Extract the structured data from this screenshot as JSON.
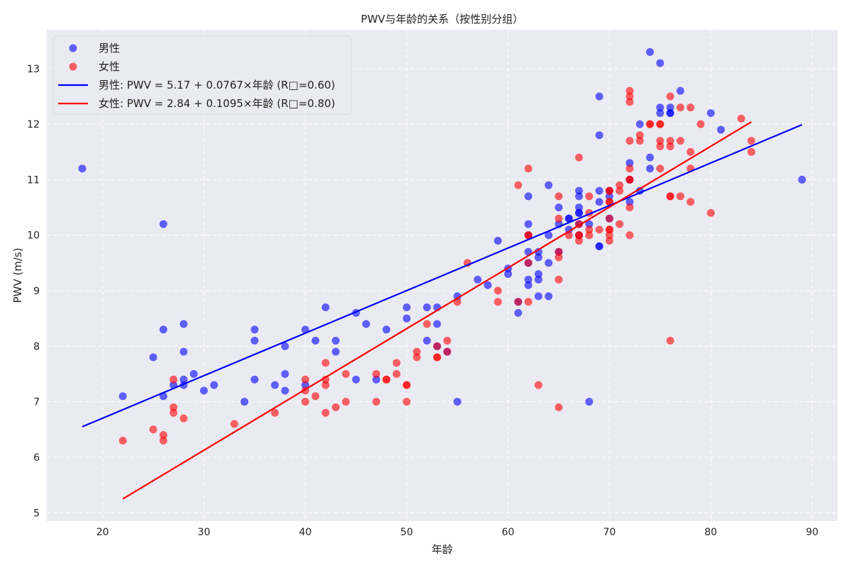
{
  "chart_data": {
    "type": "scatter",
    "title": "PWV与年龄的关系（按性别分组）",
    "xlabel": "年龄",
    "ylabel": "PWV (m/s)",
    "xlim": [
      14.5,
      92.5
    ],
    "ylim": [
      4.85,
      13.7
    ],
    "xticks": [
      20,
      30,
      40,
      50,
      60,
      70,
      80,
      90
    ],
    "yticks": [
      5,
      6,
      7,
      8,
      9,
      10,
      11,
      12,
      13
    ],
    "grid": true,
    "legend_position": "top-left",
    "series": [
      {
        "name": "男性",
        "kind": "scatter",
        "color": "#0000ff",
        "alpha": 0.6,
        "points": [
          [
            18,
            11.2
          ],
          [
            22,
            7.1
          ],
          [
            25,
            7.8
          ],
          [
            26,
            10.2
          ],
          [
            26,
            8.3
          ],
          [
            26,
            7.1
          ],
          [
            27,
            7.3
          ],
          [
            28,
            8.4
          ],
          [
            28,
            7.9
          ],
          [
            28,
            7.4
          ],
          [
            28,
            7.3
          ],
          [
            29,
            7.5
          ],
          [
            30,
            7.2
          ],
          [
            31,
            7.3
          ],
          [
            34,
            7.0
          ],
          [
            35,
            8.3
          ],
          [
            35,
            8.1
          ],
          [
            35,
            7.4
          ],
          [
            37,
            7.3
          ],
          [
            38,
            8.0
          ],
          [
            38,
            7.5
          ],
          [
            38,
            7.2
          ],
          [
            40,
            8.3
          ],
          [
            40,
            7.3
          ],
          [
            41,
            8.1
          ],
          [
            42,
            8.7
          ],
          [
            43,
            8.1
          ],
          [
            43,
            7.9
          ],
          [
            45,
            8.6
          ],
          [
            45,
            7.4
          ],
          [
            46,
            8.4
          ],
          [
            47,
            7.4
          ],
          [
            48,
            8.3
          ],
          [
            50,
            8.7
          ],
          [
            50,
            8.5
          ],
          [
            52,
            8.7
          ],
          [
            52,
            8.1
          ],
          [
            53,
            8.7
          ],
          [
            53,
            8.4
          ],
          [
            53,
            8.0
          ],
          [
            54,
            7.9
          ],
          [
            55,
            8.9
          ],
          [
            55,
            7.0
          ],
          [
            57,
            9.2
          ],
          [
            58,
            9.1
          ],
          [
            59,
            9.9
          ],
          [
            60,
            9.4
          ],
          [
            60,
            9.3
          ],
          [
            61,
            8.8
          ],
          [
            61,
            8.6
          ],
          [
            62,
            10.7
          ],
          [
            62,
            10.2
          ],
          [
            62,
            10.0
          ],
          [
            62,
            9.7
          ],
          [
            62,
            9.5
          ],
          [
            62,
            9.2
          ],
          [
            62,
            9.1
          ],
          [
            63,
            9.7
          ],
          [
            63,
            9.6
          ],
          [
            63,
            9.3
          ],
          [
            63,
            9.2
          ],
          [
            63,
            8.9
          ],
          [
            64,
            10.9
          ],
          [
            64,
            10.0
          ],
          [
            64,
            9.5
          ],
          [
            64,
            8.9
          ],
          [
            65,
            10.5
          ],
          [
            65,
            10.2
          ],
          [
            65,
            9.7
          ],
          [
            66,
            10.3
          ],
          [
            66,
            10.3
          ],
          [
            66,
            10.1
          ],
          [
            67,
            10.8
          ],
          [
            67,
            10.7
          ],
          [
            67,
            10.5
          ],
          [
            67,
            10.4
          ],
          [
            67,
            10.4
          ],
          [
            67,
            10.2
          ],
          [
            67,
            10.0
          ],
          [
            68,
            10.2
          ],
          [
            68,
            7.0
          ],
          [
            69,
            12.5
          ],
          [
            69,
            11.8
          ],
          [
            69,
            10.8
          ],
          [
            69,
            10.6
          ],
          [
            69,
            9.8
          ],
          [
            69,
            9.8
          ],
          [
            70,
            10.8
          ],
          [
            70,
            10.7
          ],
          [
            70,
            10.3
          ],
          [
            72,
            11.3
          ],
          [
            72,
            11.0
          ],
          [
            72,
            10.6
          ],
          [
            73,
            12.0
          ],
          [
            73,
            10.8
          ],
          [
            74,
            13.3
          ],
          [
            74,
            11.4
          ],
          [
            74,
            11.2
          ],
          [
            75,
            13.1
          ],
          [
            75,
            12.3
          ],
          [
            75,
            12.2
          ],
          [
            76,
            12.3
          ],
          [
            76,
            12.2
          ],
          [
            76,
            12.2
          ],
          [
            77,
            12.6
          ],
          [
            80,
            12.2
          ],
          [
            81,
            11.9
          ],
          [
            89,
            11.0
          ]
        ]
      },
      {
        "name": "女性",
        "kind": "scatter",
        "color": "#ff0000",
        "alpha": 0.6,
        "points": [
          [
            22,
            6.3
          ],
          [
            25,
            6.5
          ],
          [
            26,
            6.4
          ],
          [
            26,
            6.3
          ],
          [
            27,
            7.4
          ],
          [
            27,
            6.9
          ],
          [
            27,
            6.8
          ],
          [
            28,
            6.7
          ],
          [
            33,
            6.6
          ],
          [
            37,
            6.8
          ],
          [
            40,
            7.4
          ],
          [
            40,
            7.2
          ],
          [
            40,
            7.0
          ],
          [
            41,
            7.1
          ],
          [
            42,
            7.7
          ],
          [
            42,
            7.4
          ],
          [
            42,
            7.3
          ],
          [
            42,
            6.8
          ],
          [
            43,
            6.9
          ],
          [
            44,
            7.5
          ],
          [
            44,
            7.0
          ],
          [
            47,
            7.5
          ],
          [
            47,
            7.0
          ],
          [
            48,
            7.4
          ],
          [
            48,
            7.4
          ],
          [
            49,
            7.7
          ],
          [
            49,
            7.5
          ],
          [
            50,
            7.3
          ],
          [
            50,
            7.3
          ],
          [
            50,
            7.0
          ],
          [
            51,
            7.9
          ],
          [
            51,
            7.8
          ],
          [
            52,
            8.4
          ],
          [
            53,
            8.0
          ],
          [
            53,
            7.8
          ],
          [
            53,
            7.8
          ],
          [
            54,
            8.1
          ],
          [
            54,
            7.9
          ],
          [
            55,
            8.8
          ],
          [
            56,
            9.5
          ],
          [
            59,
            9.0
          ],
          [
            59,
            8.8
          ],
          [
            61,
            10.9
          ],
          [
            61,
            8.8
          ],
          [
            62,
            11.2
          ],
          [
            62,
            10.0
          ],
          [
            62,
            10.0
          ],
          [
            62,
            9.5
          ],
          [
            62,
            8.8
          ],
          [
            63,
            7.3
          ],
          [
            65,
            10.7
          ],
          [
            65,
            10.3
          ],
          [
            65,
            9.7
          ],
          [
            65,
            9.6
          ],
          [
            65,
            9.2
          ],
          [
            65,
            6.9
          ],
          [
            66,
            10.0
          ],
          [
            67,
            11.4
          ],
          [
            67,
            10.2
          ],
          [
            67,
            10.0
          ],
          [
            67,
            10.0
          ],
          [
            67,
            9.9
          ],
          [
            68,
            10.7
          ],
          [
            68,
            10.4
          ],
          [
            68,
            10.1
          ],
          [
            68,
            10.0
          ],
          [
            69,
            10.1
          ],
          [
            70,
            10.8
          ],
          [
            70,
            10.8
          ],
          [
            70,
            10.6
          ],
          [
            70,
            10.6
          ],
          [
            70,
            10.3
          ],
          [
            70,
            10.1
          ],
          [
            70,
            10.1
          ],
          [
            70,
            10.0
          ],
          [
            70,
            9.9
          ],
          [
            71,
            10.9
          ],
          [
            71,
            10.8
          ],
          [
            71,
            10.2
          ],
          [
            72,
            12.6
          ],
          [
            72,
            12.5
          ],
          [
            72,
            12.4
          ],
          [
            72,
            11.7
          ],
          [
            72,
            11.2
          ],
          [
            72,
            11.0
          ],
          [
            72,
            11.0
          ],
          [
            72,
            10.5
          ],
          [
            72,
            10.0
          ],
          [
            73,
            11.8
          ],
          [
            73,
            11.7
          ],
          [
            74,
            12.0
          ],
          [
            74,
            12.0
          ],
          [
            75,
            12.0
          ],
          [
            75,
            12.0
          ],
          [
            75,
            11.7
          ],
          [
            75,
            11.6
          ],
          [
            75,
            11.2
          ],
          [
            76,
            12.5
          ],
          [
            76,
            11.7
          ],
          [
            76,
            11.6
          ],
          [
            76,
            10.7
          ],
          [
            76,
            10.7
          ],
          [
            76,
            8.1
          ],
          [
            77,
            12.3
          ],
          [
            77,
            11.7
          ],
          [
            77,
            10.7
          ],
          [
            78,
            12.3
          ],
          [
            78,
            11.5
          ],
          [
            78,
            11.2
          ],
          [
            78,
            10.6
          ],
          [
            79,
            12.0
          ],
          [
            80,
            10.4
          ],
          [
            83,
            12.1
          ],
          [
            84,
            11.7
          ],
          [
            84,
            11.5
          ]
        ]
      },
      {
        "name": "男性: PWV = 5.17 + 0.0767×年龄 (R□=0.60)",
        "kind": "line",
        "color": "#0000ff",
        "points": [
          [
            18,
            6.55
          ],
          [
            89,
            11.99
          ]
        ]
      },
      {
        "name": "女性: PWV = 2.84 + 0.1095×年龄 (R□=0.80)",
        "kind": "line",
        "color": "#ff0000",
        "points": [
          [
            22,
            5.25
          ],
          [
            84,
            12.04
          ]
        ]
      }
    ]
  }
}
